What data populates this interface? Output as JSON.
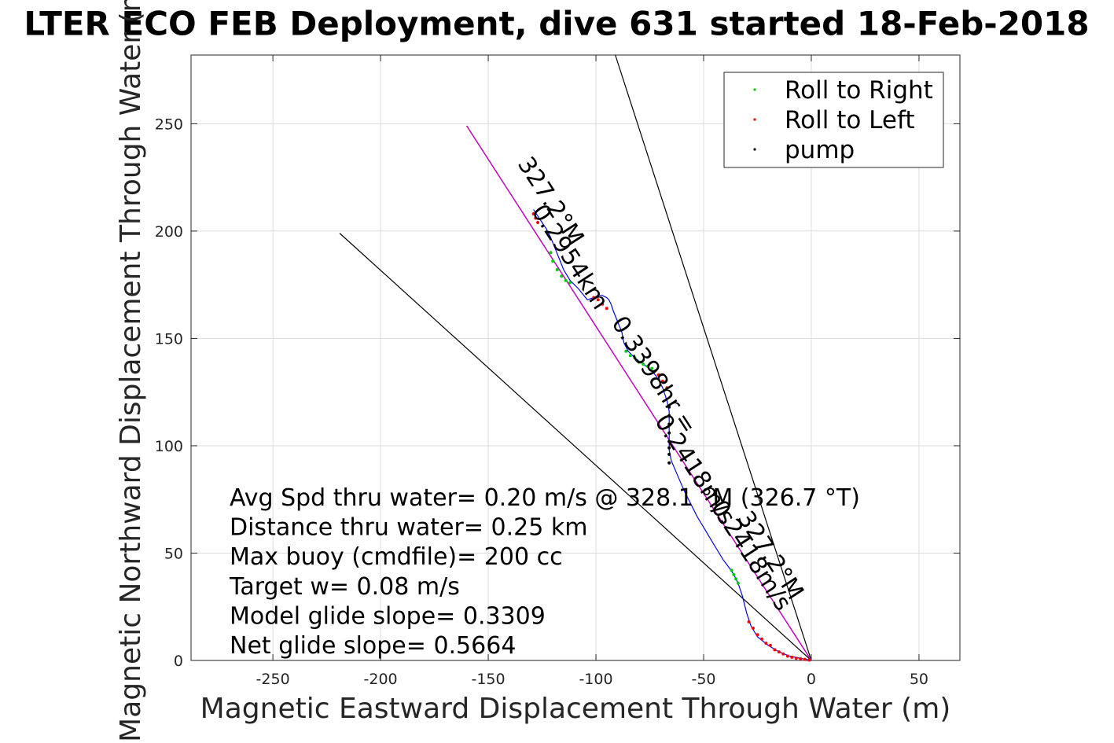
{
  "chart_data": {
    "type": "scatter",
    "title": "LTER ECO FEB Deployment, dive 631 started 18-Feb-2018",
    "xlabel": "Magnetic Eastward Displacement Through Water (m)",
    "ylabel": "Magnetic Northward Displacement Through Water (m)",
    "xlim": [
      -288,
      69
    ],
    "ylim": [
      0,
      282
    ],
    "xticks": [
      -250,
      -200,
      -150,
      -100,
      -50,
      0,
      50
    ],
    "yticks": [
      0,
      50,
      100,
      150,
      200,
      250
    ],
    "grid": true,
    "legend_position": "top-right",
    "legend": [
      {
        "label": "Roll to Right",
        "color": "#00cc00"
      },
      {
        "label": "Roll to Left",
        "color": "#ff0000"
      },
      {
        "label": "pump",
        "color": "#000000"
      }
    ],
    "track_color": "#0000ff",
    "mean_line_color": "#cc00cc",
    "series": [
      {
        "name": "Roll to Right",
        "color": "#00cc00",
        "x": [
          -37,
          -36,
          -35,
          -34,
          -86,
          -84,
          -82,
          -80,
          -78,
          -76,
          -74,
          -112,
          -114,
          -116,
          -118,
          -120,
          -121
        ],
        "y": [
          42,
          40,
          38,
          36,
          144,
          142,
          141,
          139,
          138,
          137,
          136,
          176,
          177,
          179,
          182,
          186,
          190
        ]
      },
      {
        "name": "Roll to Left",
        "color": "#ff0000",
        "x": [
          -29,
          -27,
          -25,
          -23,
          -21,
          -19,
          -17,
          -15,
          -13,
          -11,
          -9,
          -7,
          -5,
          -3,
          -1,
          -71,
          -69,
          -67,
          -101,
          -99,
          -97,
          -95,
          -127,
          -128,
          -129
        ],
        "y": [
          18,
          15,
          12,
          10,
          8,
          7,
          5,
          4,
          3,
          2,
          1.5,
          1,
          0.8,
          0.5,
          0.2,
          133,
          130,
          127,
          169,
          168,
          166,
          164,
          204,
          206,
          208
        ]
      },
      {
        "name": "pump",
        "color": "#000000",
        "x": [
          -66,
          -66,
          -66,
          -66,
          -66,
          -66,
          -66,
          -66
        ],
        "y": [
          118,
          114,
          110,
          106,
          102,
          99,
          96,
          92
        ]
      }
    ],
    "track": {
      "x": [
        0,
        -5,
        -10,
        -15,
        -20,
        -25,
        -28,
        -30,
        -32,
        -34,
        -36,
        -38,
        -41,
        -44,
        -47,
        -50,
        -53,
        -56,
        -59,
        -62,
        -65,
        -66,
        -66,
        -66,
        -66,
        -67,
        -69,
        -71,
        -74,
        -78,
        -82,
        -85,
        -87,
        -88,
        -90,
        -92,
        -93,
        -94,
        -95,
        -97,
        -99,
        -101,
        -104,
        -108,
        -112,
        -115,
        -117,
        -119,
        -121,
        -123,
        -125,
        -127,
        -129
      ],
      "y": [
        0,
        1,
        2,
        4,
        7,
        11,
        16,
        22,
        30,
        36,
        40,
        43,
        47,
        52,
        57,
        62,
        67,
        73,
        79,
        86,
        93,
        98,
        104,
        110,
        116,
        121,
        127,
        131,
        135,
        138,
        141,
        144,
        148,
        153,
        158,
        163,
        166,
        168,
        169,
        170,
        170,
        169,
        168,
        173,
        177,
        182,
        187,
        192,
        197,
        201,
        204,
        207,
        210
      ]
    },
    "mean_line": {
      "x": [
        0,
        -160
      ],
      "y": [
        0,
        249
      ]
    },
    "angle_lines": [
      {
        "x": [
          0,
          -219
        ],
        "y": [
          0,
          199
        ]
      },
      {
        "x": [
          0,
          -91
        ],
        "y": [
          0,
          282
        ]
      }
    ],
    "annotations": [
      {
        "text": "327.2°M",
        "x": -124,
        "y": 212,
        "rotation": 57
      },
      {
        "text": "0.2954km",
        "x": -115,
        "y": 186,
        "rotation": 57
      },
      {
        "text": "0.3398hr =",
        "x": -76,
        "y": 131,
        "rotation": 57
      },
      {
        "text": "0.2418m/s",
        "x": -31,
        "y": 47,
        "rotation": 57
      },
      {
        "text": "327.2°M",
        "x": -22,
        "y": 47,
        "rotation": 57
      },
      {
        "text": "0.2418m/s",
        "x": -57,
        "y": 87,
        "rotation": 57
      }
    ],
    "stats": [
      "Avg Spd thru water=  0.20 m/s @ 328.1 °M (326.7 °T)",
      "Distance thru water=  0.25 km",
      "Max buoy (cmdfile)= 200 cc",
      "Target w= 0.08 m/s",
      "Model glide slope= 0.3309",
      "Net glide slope= 0.5664"
    ]
  }
}
